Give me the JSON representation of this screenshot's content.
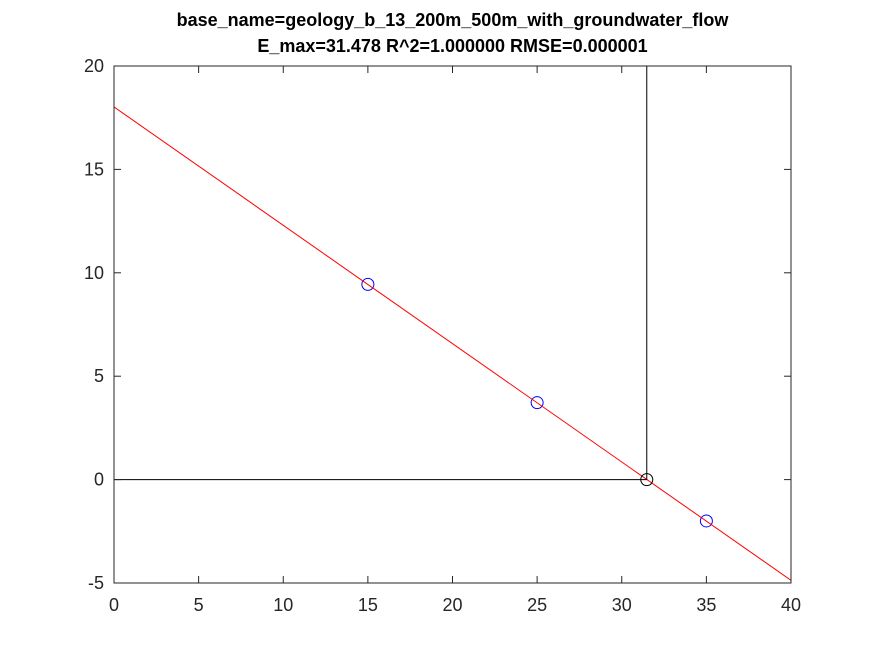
{
  "chart_data": {
    "type": "line",
    "title": [
      "base_name=geology_b_13_200m_500m_with_groundwater_flow",
      "E_max=31.478 R^2=1.000000 RMSE=0.000001"
    ],
    "xlabel": "",
    "ylabel": "",
    "xlim": [
      0,
      40
    ],
    "ylim": [
      -5,
      20
    ],
    "x_ticks": [
      "0",
      "5",
      "10",
      "15",
      "20",
      "25",
      "30",
      "35",
      "40"
    ],
    "y_ticks": [
      "-5",
      "0",
      "5",
      "10",
      "15",
      "20"
    ],
    "grid": false,
    "legend": "none",
    "series": [
      {
        "kind": "scatter",
        "marker": "circle",
        "color": "#0000ff",
        "points": [
          [
            15,
            9.44
          ],
          [
            25,
            3.72
          ],
          [
            35,
            -2.0
          ]
        ]
      },
      {
        "kind": "line",
        "color": "#ff0000",
        "points": [
          [
            0,
            18.02
          ],
          [
            40,
            -4.87
          ]
        ]
      },
      {
        "kind": "line",
        "color": "#000000",
        "points": [
          [
            0,
            0
          ],
          [
            31.478,
            0
          ]
        ]
      },
      {
        "kind": "line",
        "color": "#000000",
        "points": [
          [
            31.478,
            0
          ],
          [
            31.478,
            20
          ]
        ]
      },
      {
        "kind": "scatter",
        "marker": "circle",
        "color": "#000000",
        "points": [
          [
            31.478,
            0
          ]
        ]
      }
    ]
  }
}
